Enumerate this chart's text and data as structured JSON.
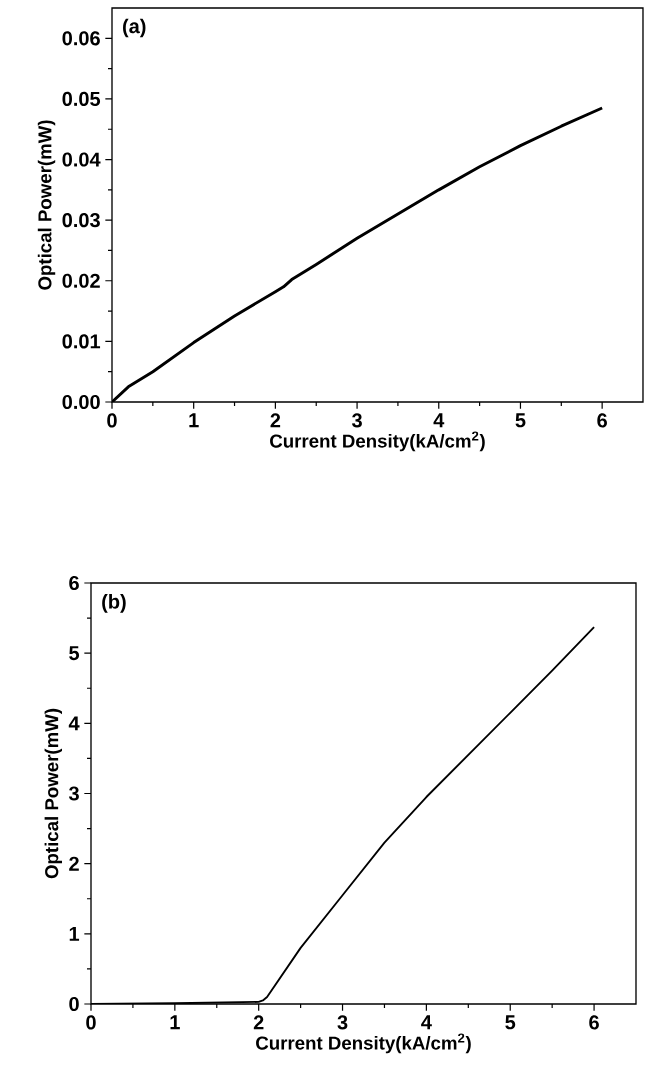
{
  "chart_data": [
    {
      "type": "line",
      "xlabel": "Current Density(kA/cm$^{2}$)",
      "ylabel": "Optical Power(mW)",
      "annotations": [
        "(a)"
      ],
      "color": "#000000",
      "x": [
        0,
        0.2,
        0.5,
        1,
        1.5,
        2,
        2.1,
        2.2,
        2.5,
        3,
        3.5,
        4,
        4.5,
        5,
        5.5,
        6
      ],
      "values": [
        0,
        0.0025,
        0.005,
        0.0098,
        0.0142,
        0.0182,
        0.019,
        0.0202,
        0.0227,
        0.027,
        0.031,
        0.035,
        0.0388,
        0.0423,
        0.0455,
        0.0485
      ],
      "xlim": [
        0,
        6.5
      ],
      "ylim": [
        0,
        0.065
      ],
      "xticks": [
        0,
        1,
        2,
        3,
        4,
        5,
        6
      ],
      "yticks": [
        {
          "value": 0,
          "label": "0.00"
        },
        0.01,
        0.02,
        0.03,
        0.04,
        0.05,
        0.06
      ]
    },
    {
      "type": "line",
      "xlabel": "Current Density(kA/cm$^{2}$)",
      "ylabel": "Optical Power(mW)",
      "annotations": [
        "(b)"
      ],
      "color": "#000000",
      "x": [
        0,
        1,
        2,
        2.05,
        2.1,
        2.5,
        3,
        3.5,
        4,
        4.5,
        5,
        5.5,
        6
      ],
      "values": [
        0,
        0.01,
        0.03,
        0.05,
        0.1,
        0.8,
        1.55,
        2.3,
        2.95,
        3.55,
        4.15,
        4.75,
        5.37
      ],
      "xlim": [
        0,
        6.5
      ],
      "ylim": [
        0,
        6
      ],
      "xticks": [
        0,
        1,
        2,
        3,
        4,
        5,
        6
      ],
      "yticks": [
        0,
        1,
        2,
        3,
        4,
        5,
        6
      ]
    }
  ]
}
